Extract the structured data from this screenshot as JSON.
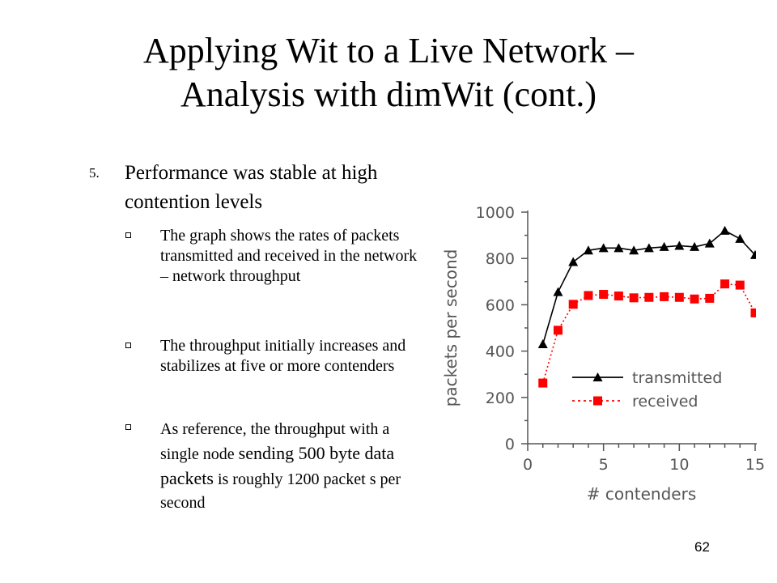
{
  "title": {
    "line1": "Applying Wit to a Live Network –",
    "line2": "Analysis with dimWit (cont.)"
  },
  "main_point": {
    "number": "5.",
    "text": "Performance was stable at high contention levels"
  },
  "bullets": {
    "b1": "The graph shows the rates of packets transmitted and received in the network – network throughput",
    "b2": "The throughput initially increases and stabilizes at five or more contenders",
    "b3": {
      "part1": "As reference, the throughput with a single node ",
      "part2": "sending 500 byte data packets",
      "part3": " is roughly 1200 packet s per second"
    }
  },
  "page_number": "62",
  "chart_data": {
    "type": "line",
    "xlabel": "# contenders",
    "ylabel": "packets per second",
    "xlim": [
      0,
      15
    ],
    "ylim": [
      0,
      1000
    ],
    "xticks": [
      "0",
      "5",
      "10",
      "15"
    ],
    "yticks": [
      "0",
      "200",
      "400",
      "600",
      "800",
      "1000"
    ],
    "x": [
      1,
      2,
      3,
      4,
      5,
      6,
      7,
      8,
      9,
      10,
      11,
      12,
      13,
      14,
      15
    ],
    "series": [
      {
        "name": "transmitted",
        "color": "#000000",
        "marker": "triangle",
        "line": "solid",
        "values": [
          430,
          655,
          785,
          835,
          845,
          845,
          835,
          845,
          850,
          855,
          850,
          865,
          920,
          885,
          815
        ]
      },
      {
        "name": "received",
        "color": "#ff0000",
        "marker": "square",
        "line": "dotted",
        "values": [
          262,
          490,
          602,
          640,
          645,
          638,
          630,
          632,
          635,
          632,
          625,
          628,
          690,
          685,
          565
        ]
      }
    ],
    "legend_position": "bottom-right"
  }
}
